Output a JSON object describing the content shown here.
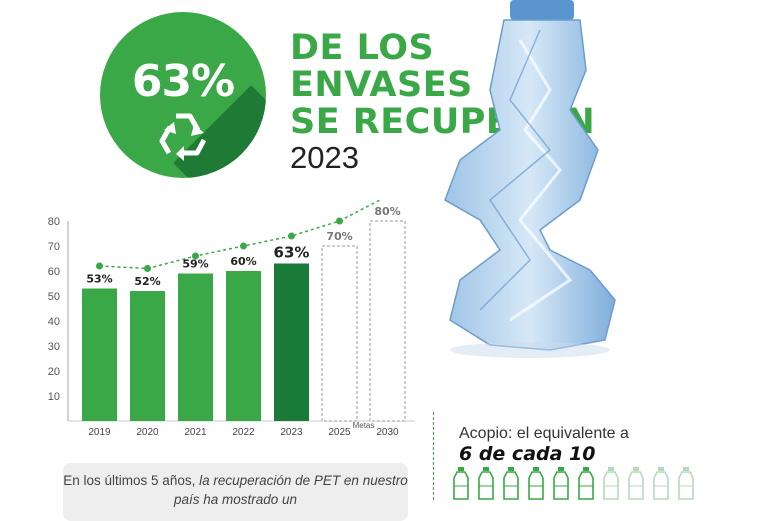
{
  "badge": {
    "percent": "63%"
  },
  "headline": {
    "line1": "DE LOS",
    "line2": "ENVASES",
    "line3": "SE RECUPERAN",
    "year": "2023"
  },
  "colors": {
    "green": "#3aa847",
    "dark_green": "#1e7a35",
    "bar_2023": "#1a7a38",
    "dotted_line": "#3aa847"
  },
  "chart_data": {
    "type": "bar",
    "categories": [
      "2019",
      "2020",
      "2021",
      "2022",
      "2023",
      "2025",
      "2030"
    ],
    "values": [
      53,
      52,
      59,
      60,
      63,
      70,
      80
    ],
    "value_labels": [
      "53%",
      "52%",
      "59%",
      "60%",
      "63%",
      "70%",
      "80%"
    ],
    "target_categories": [
      "2025",
      "2030"
    ],
    "target_group_label": "Metas",
    "trend_line": [
      62,
      61,
      66,
      70,
      74,
      80,
      90
    ],
    "yticks": [
      10,
      20,
      30,
      40,
      50,
      60,
      70,
      80
    ],
    "ylim": [
      0,
      80
    ],
    "grid": false
  },
  "note": {
    "text_plain": "En los últimos 5 años, ",
    "text_italic": "la recuperación de PET en nuestro país ha mostrado un"
  },
  "acopio": {
    "label": "Acopio: el equivalente a",
    "value": "6 de cada 10",
    "filled": 6,
    "total": 10
  }
}
